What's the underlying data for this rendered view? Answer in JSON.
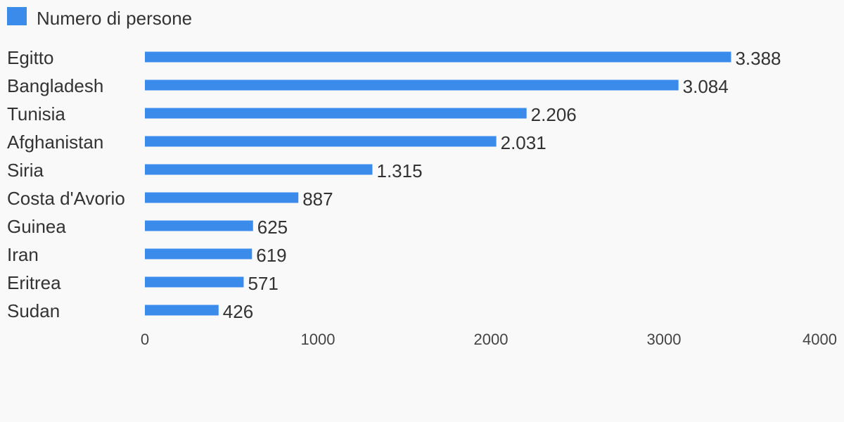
{
  "chart_data": {
    "type": "bar",
    "orientation": "horizontal",
    "categories": [
      "Egitto",
      "Bangladesh",
      "Tunisia",
      "Afghanistan",
      "Siria",
      "Costa d'Avorio",
      "Guinea",
      "Iran",
      "Eritrea",
      "Sudan"
    ],
    "series": [
      {
        "name": "Numero di persone",
        "values": [
          3388,
          3084,
          2206,
          2031,
          1315,
          887,
          625,
          619,
          571,
          426
        ],
        "value_labels": [
          "3.388",
          "3.084",
          "2.206",
          "2.031",
          "1.315",
          "887",
          "625",
          "619",
          "571",
          "426"
        ],
        "color": "#3a8bea"
      }
    ],
    "xlim": [
      0,
      4000
    ],
    "x_ticks": [
      0,
      1000,
      2000,
      3000,
      4000
    ],
    "x_tick_labels": [
      "0",
      "1000",
      "2000",
      "3000",
      "4000"
    ],
    "legend_position": "top-left",
    "grid": false,
    "text_color": "#333333",
    "tick_color": "#444444",
    "background": "#f9f9f9"
  }
}
